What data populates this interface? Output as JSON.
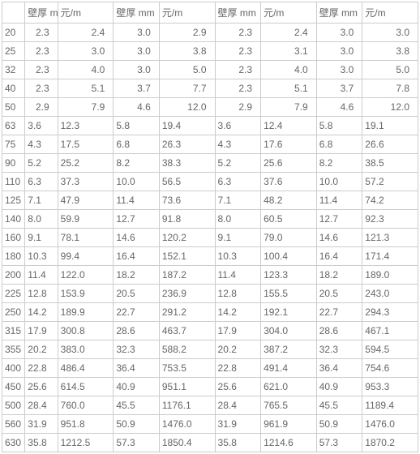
{
  "headers": [
    "",
    "壁厚 mm",
    "元/m",
    "壁厚 mm",
    "元/m",
    "壁厚 mm",
    "元/m",
    "壁厚 mm",
    "元/m"
  ],
  "rightAlignRows": 5,
  "rows": [
    [
      "20",
      "2.3",
      "2.4",
      "3.0",
      "2.9",
      "2.3",
      "2.4",
      "3.0",
      "3.0"
    ],
    [
      "25",
      "2.3",
      "3.0",
      "3.0",
      "3.8",
      "2.3",
      "3.1",
      "3.0",
      "3.8"
    ],
    [
      "32",
      "2.3",
      "4.0",
      "3.0",
      "5.0",
      "2.3",
      "4.0",
      "3.0",
      "5.0"
    ],
    [
      "40",
      "2.3",
      "5.1",
      "3.7",
      "7.7",
      "2.3",
      "5.1",
      "3.7",
      "7.8"
    ],
    [
      "50",
      "2.9",
      "7.9",
      "4.6",
      "12.0",
      "2.9",
      "7.9",
      "4.6",
      "12.0"
    ],
    [
      "63",
      "3.6",
      "12.3",
      "5.8",
      "19.4",
      "3.6",
      "12.4",
      "5.8",
      "19.1"
    ],
    [
      "75",
      "4.3",
      "17.5",
      "6.8",
      "26.3",
      "4.3",
      "17.6",
      "6.8",
      "26.6"
    ],
    [
      "90",
      "5.2",
      "25.2",
      "8.2",
      "38.3",
      "5.2",
      "25.6",
      "8.2",
      "38.5"
    ],
    [
      "110",
      "6.3",
      "37.3",
      "10.0",
      "56.5",
      "6.3",
      "37.6",
      "10.0",
      "57.2"
    ],
    [
      "125",
      "7.1",
      "47.9",
      "11.4",
      "73.6",
      "7.1",
      "48.2",
      "11.4",
      "74.2"
    ],
    [
      "140",
      "8.0",
      "59.9",
      "12.7",
      "91.8",
      "8.0",
      "60.5",
      "12.7",
      "92.3"
    ],
    [
      "160",
      "9.1",
      "78.1",
      "14.6",
      "120.2",
      "9.1",
      "79.0",
      "14.6",
      "121.3"
    ],
    [
      "180",
      "10.3",
      "99.4",
      "16.4",
      "152.1",
      "10.3",
      "100.4",
      "16.4",
      "171.4"
    ],
    [
      "200",
      "11.4",
      "122.0",
      "18.2",
      "187.2",
      "11.4",
      "123.3",
      "18.2",
      "189.0"
    ],
    [
      "225",
      "12.8",
      "153.9",
      "20.5",
      "236.9",
      "12.8",
      "155.5",
      "20.5",
      "243.0"
    ],
    [
      "250",
      "14.2",
      "189.9",
      "22.7",
      "291.2",
      "14.2",
      "192.1",
      "22.7",
      "294.3"
    ],
    [
      "315",
      "17.9",
      "300.8",
      "28.6",
      "463.7",
      "17.9",
      "304.0",
      "28.6",
      "467.1"
    ],
    [
      "355",
      "20.2",
      "383.0",
      "32.3",
      "588.2",
      "20.2",
      "387.2",
      "32.3",
      "594.5"
    ],
    [
      "400",
      "22.8",
      "486.4",
      "36.4",
      "753.5",
      "22.8",
      "491.4",
      "36.4",
      "754.6"
    ],
    [
      "450",
      "25.6",
      "614.5",
      "40.9",
      "951.1",
      "25.6",
      "621.0",
      "40.9",
      "953.3"
    ],
    [
      "500",
      "28.4",
      "760.0",
      "45.5",
      "1176.1",
      "28.4",
      "765.5",
      "45.5",
      "1189.4"
    ],
    [
      "560",
      "31.9",
      "951.8",
      "50.9",
      "1476.0",
      "31.9",
      "961.9",
      "50.9",
      "1476.0"
    ],
    [
      "630",
      "35.8",
      "1212.5",
      "57.3",
      "1850.4",
      "35.8",
      "1214.6",
      "57.3",
      "1870.2"
    ]
  ]
}
